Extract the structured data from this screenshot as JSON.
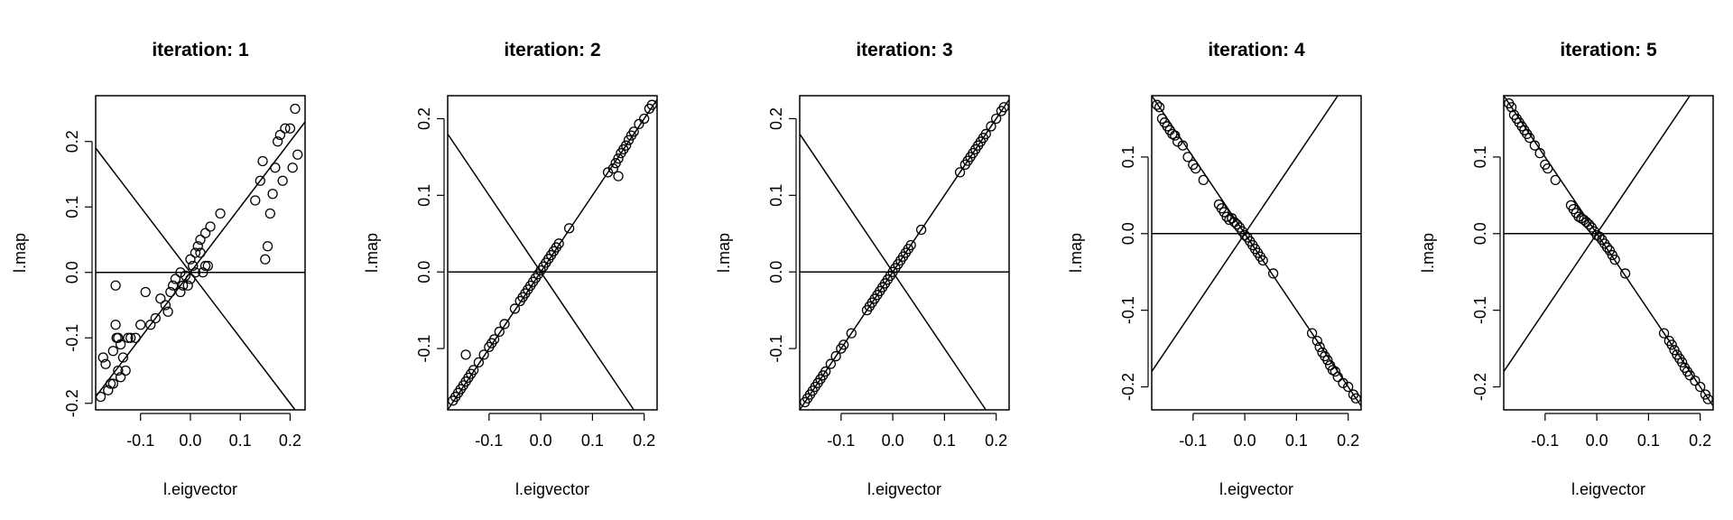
{
  "colors": {
    "ink": "#000000",
    "background": "#ffffff"
  },
  "chart_data": [
    {
      "type": "scatter",
      "title": "iteration: 1",
      "xlabel": "l.eigvector",
      "ylabel": "l.map",
      "xlim": [
        -0.19,
        0.23
      ],
      "ylim": [
        -0.21,
        0.27
      ],
      "xticks": [
        -0.1,
        0.0,
        0.1,
        0.2
      ],
      "xtick_labels": [
        "-0.1",
        "0.0",
        "0.1",
        "0.2"
      ],
      "yticks": [
        -0.2,
        -0.1,
        0.0,
        0.1,
        0.2
      ],
      "ytick_labels": [
        "-0.2",
        "-0.1",
        "0.0",
        "0.1",
        "0.2"
      ],
      "lines": [
        {
          "type": "hline",
          "y": 0
        },
        {
          "type": "abline",
          "intercept": 0,
          "slope": -1
        },
        {
          "type": "abline",
          "intercept": 0,
          "slope": 1
        }
      ],
      "x": [
        -0.18,
        -0.175,
        -0.17,
        -0.165,
        -0.16,
        -0.155,
        -0.15,
        -0.148,
        -0.145,
        -0.14,
        -0.135,
        -0.13,
        -0.125,
        -0.12,
        -0.11,
        -0.1,
        -0.09,
        -0.08,
        -0.07,
        -0.06,
        -0.05,
        -0.045,
        -0.04,
        -0.035,
        -0.03,
        -0.02,
        -0.015,
        -0.01,
        -0.005,
        0.0,
        0.005,
        0.01,
        0.015,
        0.02,
        0.025,
        0.03,
        0.035,
        0.04,
        0.06,
        0.13,
        0.14,
        0.145,
        0.15,
        0.155,
        0.16,
        0.165,
        0.17,
        0.175,
        0.18,
        0.185,
        0.19,
        0.2,
        0.205,
        0.21,
        0.215,
        -0.155,
        -0.15,
        -0.145,
        -0.14,
        0.03,
        0.0,
        0.01,
        -0.02,
        0.02
      ],
      "y": [
        -0.19,
        -0.13,
        -0.14,
        -0.18,
        -0.17,
        -0.12,
        -0.08,
        -0.1,
        -0.15,
        -0.11,
        -0.13,
        -0.15,
        -0.1,
        -0.1,
        -0.1,
        -0.08,
        -0.03,
        -0.08,
        -0.07,
        -0.04,
        -0.05,
        -0.06,
        -0.03,
        -0.02,
        -0.01,
        0.0,
        -0.02,
        -0.005,
        -0.02,
        0.02,
        0.01,
        0.03,
        0.04,
        0.05,
        0.0,
        0.06,
        0.01,
        0.07,
        0.09,
        0.11,
        0.14,
        0.17,
        0.02,
        0.04,
        0.09,
        0.12,
        0.16,
        0.2,
        0.21,
        0.14,
        0.22,
        0.22,
        0.16,
        0.25,
        0.18,
        -0.17,
        -0.02,
        -0.1,
        -0.16,
        0.01,
        -0.01,
        0.0,
        -0.03,
        0.03
      ]
    },
    {
      "type": "scatter",
      "title": "iteration: 2",
      "xlabel": "l.eigvector",
      "ylabel": "l.map",
      "xlim": [
        -0.18,
        0.225
      ],
      "ylim": [
        -0.18,
        0.23
      ],
      "xticks": [
        -0.1,
        0.0,
        0.1,
        0.2
      ],
      "xtick_labels": [
        "-0.1",
        "0.0",
        "0.1",
        "0.2"
      ],
      "yticks": [
        -0.1,
        0.0,
        0.1,
        0.2
      ],
      "ytick_labels": [
        "-0.1",
        "0.0",
        "0.1",
        "0.2"
      ],
      "lines": [
        {
          "type": "hline",
          "y": 0
        },
        {
          "type": "abline",
          "intercept": 0,
          "slope": -1
        },
        {
          "type": "abline",
          "intercept": 0,
          "slope": 1
        }
      ],
      "x": [
        -0.17,
        -0.165,
        -0.16,
        -0.155,
        -0.15,
        -0.145,
        -0.14,
        -0.135,
        -0.13,
        -0.12,
        -0.11,
        -0.1,
        -0.095,
        -0.09,
        -0.08,
        -0.07,
        -0.05,
        -0.04,
        -0.035,
        -0.03,
        -0.025,
        -0.02,
        -0.015,
        -0.01,
        -0.005,
        0.0,
        0.005,
        0.01,
        0.015,
        0.02,
        0.025,
        0.03,
        0.035,
        0.055,
        0.13,
        0.14,
        0.145,
        0.15,
        0.155,
        0.16,
        0.165,
        0.17,
        0.175,
        0.18,
        0.19,
        0.2,
        0.21,
        0.215,
        -0.145,
        0.15
      ],
      "y": [
        -0.168,
        -0.163,
        -0.158,
        -0.153,
        -0.148,
        -0.143,
        -0.138,
        -0.133,
        -0.128,
        -0.118,
        -0.108,
        -0.098,
        -0.093,
        -0.088,
        -0.078,
        -0.068,
        -0.048,
        -0.038,
        -0.033,
        -0.028,
        -0.023,
        -0.018,
        -0.013,
        -0.008,
        -0.003,
        0.002,
        0.007,
        0.012,
        0.017,
        0.022,
        0.027,
        0.032,
        0.037,
        0.057,
        0.13,
        0.135,
        0.142,
        0.148,
        0.155,
        0.16,
        0.165,
        0.172,
        0.178,
        0.183,
        0.193,
        0.2,
        0.213,
        0.218,
        -0.108,
        0.125
      ]
    },
    {
      "type": "scatter",
      "title": "iteration: 3",
      "xlabel": "l.eigvector",
      "ylabel": "l.map",
      "xlim": [
        -0.18,
        0.225
      ],
      "ylim": [
        -0.18,
        0.23
      ],
      "xticks": [
        -0.1,
        0.0,
        0.1,
        0.2
      ],
      "xtick_labels": [
        "-0.1",
        "0.0",
        "0.1",
        "0.2"
      ],
      "yticks": [
        -0.1,
        0.0,
        0.1,
        0.2
      ],
      "ytick_labels": [
        "-0.1",
        "0.0",
        "0.1",
        "0.2"
      ],
      "lines": [
        {
          "type": "hline",
          "y": 0
        },
        {
          "type": "abline",
          "intercept": 0,
          "slope": -1
        },
        {
          "type": "abline",
          "intercept": 0,
          "slope": 1
        }
      ],
      "x": [
        -0.17,
        -0.165,
        -0.16,
        -0.155,
        -0.15,
        -0.145,
        -0.14,
        -0.135,
        -0.13,
        -0.12,
        -0.11,
        -0.1,
        -0.095,
        -0.08,
        -0.05,
        -0.045,
        -0.04,
        -0.035,
        -0.03,
        -0.025,
        -0.02,
        -0.015,
        -0.01,
        -0.005,
        0.0,
        0.005,
        0.01,
        0.015,
        0.02,
        0.025,
        0.03,
        0.035,
        0.055,
        0.13,
        0.14,
        0.145,
        0.15,
        0.155,
        0.16,
        0.165,
        0.17,
        0.175,
        0.18,
        0.19,
        0.2,
        0.21,
        0.215
      ],
      "y": [
        -0.17,
        -0.165,
        -0.16,
        -0.155,
        -0.15,
        -0.145,
        -0.14,
        -0.135,
        -0.13,
        -0.12,
        -0.11,
        -0.1,
        -0.095,
        -0.08,
        -0.05,
        -0.045,
        -0.04,
        -0.035,
        -0.03,
        -0.025,
        -0.02,
        -0.015,
        -0.01,
        -0.005,
        0.0,
        0.005,
        0.01,
        0.015,
        0.02,
        0.025,
        0.03,
        0.035,
        0.055,
        0.13,
        0.14,
        0.145,
        0.15,
        0.155,
        0.16,
        0.165,
        0.17,
        0.175,
        0.18,
        0.19,
        0.2,
        0.21,
        0.215
      ]
    },
    {
      "type": "scatter",
      "title": "iteration: 4",
      "xlabel": "l.eigvector",
      "ylabel": "l.map",
      "xlim": [
        -0.18,
        0.225
      ],
      "ylim": [
        -0.23,
        0.18
      ],
      "xticks": [
        -0.1,
        0.0,
        0.1,
        0.2
      ],
      "xtick_labels": [
        "-0.1",
        "0.0",
        "0.1",
        "0.2"
      ],
      "yticks": [
        -0.2,
        -0.1,
        0.0,
        0.1
      ],
      "ytick_labels": [
        "-0.2",
        "-0.1",
        "0.0",
        "0.1"
      ],
      "lines": [
        {
          "type": "hline",
          "y": 0
        },
        {
          "type": "abline",
          "intercept": 0,
          "slope": -1
        },
        {
          "type": "abline",
          "intercept": 0,
          "slope": 1
        }
      ],
      "x": [
        -0.17,
        -0.165,
        -0.16,
        -0.155,
        -0.15,
        -0.145,
        -0.14,
        -0.135,
        -0.13,
        -0.12,
        -0.11,
        -0.1,
        -0.095,
        -0.08,
        -0.05,
        -0.045,
        -0.04,
        -0.035,
        -0.03,
        -0.025,
        -0.02,
        -0.015,
        -0.01,
        -0.005,
        0.0,
        0.005,
        0.01,
        0.015,
        0.02,
        0.025,
        0.03,
        0.035,
        0.055,
        0.13,
        0.14,
        0.145,
        0.15,
        0.155,
        0.16,
        0.165,
        0.17,
        0.175,
        0.18,
        0.19,
        0.2,
        0.21,
        0.215
      ],
      "y": [
        0.168,
        0.165,
        0.15,
        0.145,
        0.14,
        0.135,
        0.13,
        0.128,
        0.12,
        0.115,
        0.1,
        0.09,
        0.085,
        0.07,
        0.038,
        0.033,
        0.028,
        0.022,
        0.018,
        0.02,
        0.015,
        0.012,
        0.008,
        0.003,
        -0.002,
        -0.005,
        -0.01,
        -0.015,
        -0.02,
        -0.025,
        -0.03,
        -0.035,
        -0.052,
        -0.13,
        -0.14,
        -0.148,
        -0.155,
        -0.16,
        -0.165,
        -0.172,
        -0.178,
        -0.18,
        -0.187,
        -0.195,
        -0.2,
        -0.21,
        -0.215
      ]
    },
    {
      "type": "scatter",
      "title": "iteration: 5",
      "xlabel": "l.eigvector",
      "ylabel": "l.map",
      "xlim": [
        -0.18,
        0.225
      ],
      "ylim": [
        -0.23,
        0.18
      ],
      "xticks": [
        -0.1,
        0.0,
        0.1,
        0.2
      ],
      "xtick_labels": [
        "-0.1",
        "0.0",
        "0.1",
        "0.2"
      ],
      "yticks": [
        -0.2,
        -0.1,
        0.0,
        0.1
      ],
      "ytick_labels": [
        "-0.2",
        "-0.1",
        "0.0",
        "0.1"
      ],
      "lines": [
        {
          "type": "hline",
          "y": 0
        },
        {
          "type": "abline",
          "intercept": 0,
          "slope": -1
        },
        {
          "type": "abline",
          "intercept": 0,
          "slope": 1
        }
      ],
      "x": [
        -0.17,
        -0.165,
        -0.16,
        -0.155,
        -0.15,
        -0.145,
        -0.14,
        -0.135,
        -0.13,
        -0.12,
        -0.11,
        -0.1,
        -0.095,
        -0.08,
        -0.05,
        -0.045,
        -0.04,
        -0.035,
        -0.03,
        -0.025,
        -0.02,
        -0.015,
        -0.01,
        -0.005,
        0.0,
        0.005,
        0.01,
        0.015,
        0.02,
        0.025,
        0.03,
        0.035,
        0.055,
        0.13,
        0.14,
        0.145,
        0.15,
        0.155,
        0.16,
        0.165,
        0.17,
        0.175,
        0.18,
        0.19,
        0.2,
        0.21,
        0.215
      ],
      "y": [
        0.17,
        0.165,
        0.155,
        0.15,
        0.145,
        0.14,
        0.135,
        0.13,
        0.125,
        0.115,
        0.105,
        0.09,
        0.085,
        0.07,
        0.037,
        0.032,
        0.027,
        0.022,
        0.02,
        0.018,
        0.015,
        0.012,
        0.008,
        0.003,
        -0.002,
        -0.004,
        -0.008,
        -0.013,
        -0.018,
        -0.022,
        -0.028,
        -0.034,
        -0.052,
        -0.13,
        -0.14,
        -0.145,
        -0.152,
        -0.158,
        -0.163,
        -0.168,
        -0.175,
        -0.18,
        -0.185,
        -0.192,
        -0.2,
        -0.21,
        -0.216
      ]
    }
  ]
}
